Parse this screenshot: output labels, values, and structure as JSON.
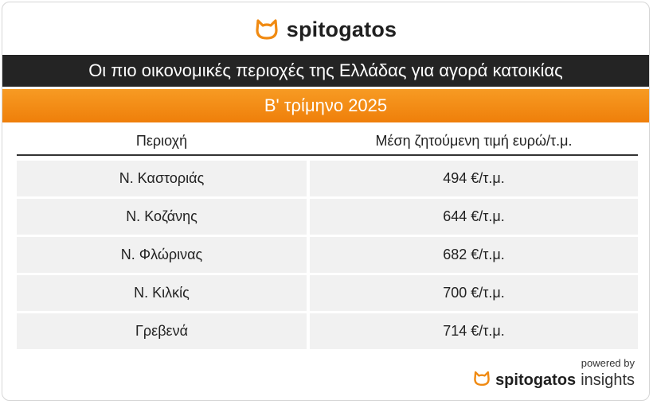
{
  "brand": {
    "name": "spitogatos",
    "icon": "cat-head-icon",
    "accent_color": "#f08a12"
  },
  "title": "Οι πιο οικονομικές περιοχές της Ελλάδας για αγορά κατοικίας",
  "subtitle": "Β' τρίμηνο 2025",
  "footer": {
    "powered_by": "powered by",
    "brand": "spitogatos",
    "brand_suffix": "insights"
  },
  "chart_data": {
    "type": "table",
    "title": "Οι πιο οικονομικές περιοχές της Ελλάδας για αγορά κατοικίας",
    "subtitle": "Β' τρίμηνο 2025",
    "columns": [
      "Περιοχή",
      "Μέση ζητούμενη τιμή ευρώ/τ.μ."
    ],
    "rows": [
      {
        "region": "Ν. Καστοριάς",
        "price": "494 €/τ.μ.",
        "value": 494
      },
      {
        "region": "Ν. Κοζάνης",
        "price": "644 €/τ.μ.",
        "value": 644
      },
      {
        "region": "Ν. Φλώρινας",
        "price": "682 €/τ.μ.",
        "value": 682
      },
      {
        "region": "Ν. Κιλκίς",
        "price": "700 €/τ.μ.",
        "value": 700
      },
      {
        "region": "Γρεβενά",
        "price": "714 €/τ.μ.",
        "value": 714
      }
    ]
  }
}
